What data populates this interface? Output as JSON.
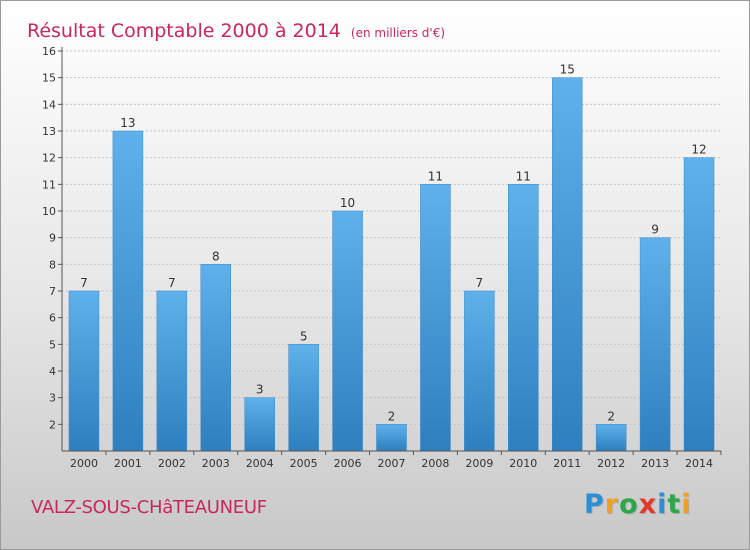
{
  "chart_data": {
    "type": "bar",
    "title": "Résultat Comptable 2000 à 2014",
    "unit_label": "(en milliers d'€)",
    "categories": [
      "2000",
      "2001",
      "2002",
      "2003",
      "2004",
      "2005",
      "2006",
      "2007",
      "2008",
      "2009",
      "2010",
      "2011",
      "2012",
      "2013",
      "2014"
    ],
    "values": [
      7,
      13,
      7,
      8,
      3,
      5,
      10,
      2,
      11,
      7,
      11,
      15,
      2,
      9,
      12
    ],
    "ylim": [
      1,
      16
    ],
    "yticks": [
      2,
      3,
      4,
      5,
      6,
      7,
      8,
      9,
      10,
      11,
      12,
      13,
      14,
      15,
      16
    ],
    "grid": true,
    "xlabel": "",
    "ylabel": "",
    "bar_color": "#4a9fdc"
  },
  "commune": "VALZ-SOUS-CHâTEAUNEUF",
  "brand": {
    "letters": [
      {
        "char": "P",
        "color": "#2b8fd6"
      },
      {
        "char": "r",
        "color": "#f0a020"
      },
      {
        "char": "o",
        "color": "#2ba84a"
      },
      {
        "char": "x",
        "color": "#e23a2a"
      },
      {
        "char": "i",
        "color": "#2b8fd6"
      },
      {
        "char": "t",
        "color": "#2ba84a"
      },
      {
        "char": "i",
        "color": "#f0a020"
      }
    ]
  },
  "colors": {
    "title": "#c8285c",
    "grid": "#c4c4c4",
    "axis": "#555555",
    "text": "#333333"
  }
}
